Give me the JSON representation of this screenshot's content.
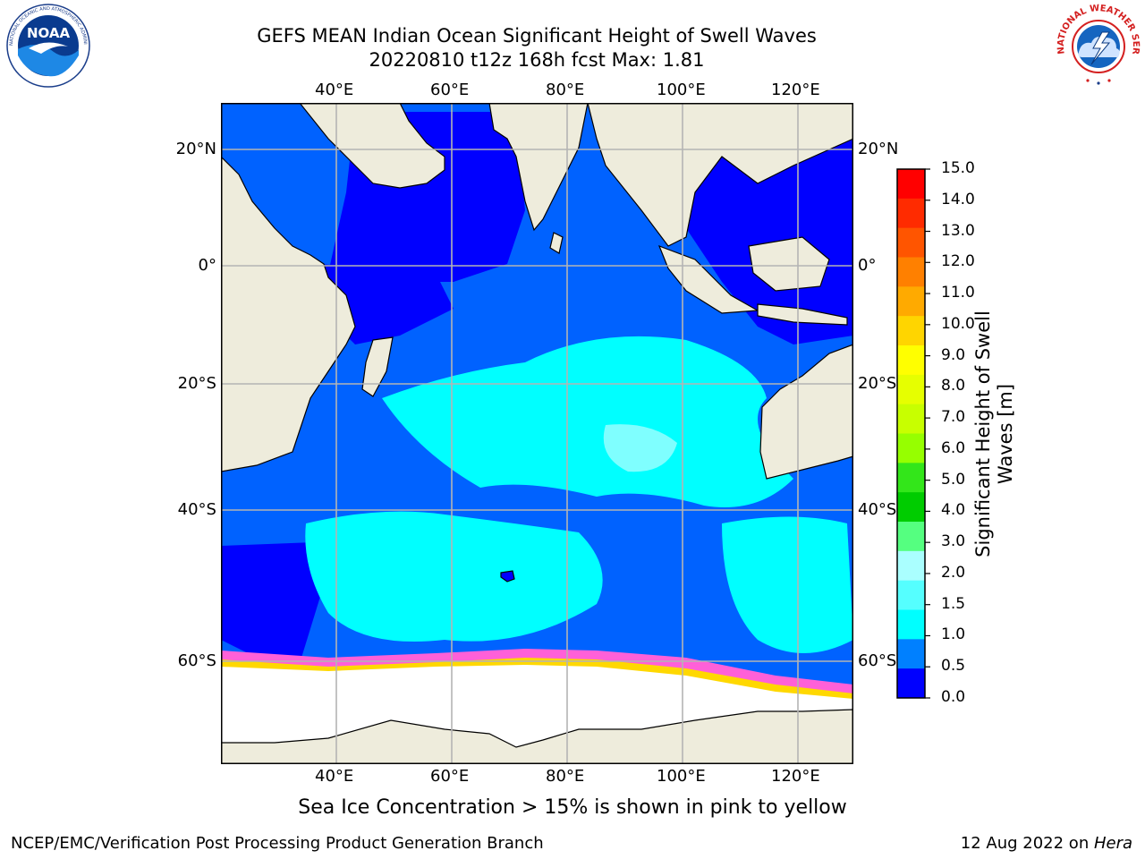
{
  "header": {
    "title_line1": "GEFS MEAN Indian Ocean Significant Height of Swell Waves",
    "title_line2": "20220810 t12z 168h fcst   Max: 1.81"
  },
  "map": {
    "lon_labels": [
      "40°E",
      "60°E",
      "80°E",
      "100°E",
      "120°E"
    ],
    "lat_labels": [
      "20°N",
      "0°",
      "20°S",
      "40°S",
      "60°S"
    ],
    "colors": {
      "land": "#eeecdc",
      "ocean_deep": "#0000ff",
      "ocean_mid": "#0062ff",
      "ocean_light": "#00ffff",
      "ice": "#ffffff",
      "ice_edge_pink": "#ff60d8",
      "ice_edge_yellow": "#ffd800",
      "grid": "#b4b4b4"
    }
  },
  "colorbar": {
    "label_line1": "Significant Height of Swell",
    "label_line2": "Waves [m]",
    "ticks": [
      "15.0",
      "14.0",
      "13.0",
      "12.0",
      "11.0",
      "10.0",
      "9.0",
      "8.0",
      "7.0",
      "6.0",
      "5.0",
      "4.0",
      "3.0",
      "2.0",
      "1.5",
      "1.0",
      "0.5",
      "0.0"
    ],
    "segment_colors": [
      "#ff0000",
      "#ff2b00",
      "#ff5500",
      "#ff8000",
      "#ffaa00",
      "#ffd500",
      "#ffff00",
      "#e6ff00",
      "#c8ff00",
      "#96ff00",
      "#33e61a",
      "#00cc00",
      "#55ff80",
      "#aaffff",
      "#55ffff",
      "#00ffff",
      "#0080ff",
      "#0000ff"
    ]
  },
  "logos": {
    "left_icon": "noaa-logo",
    "left_text": "NOAA",
    "left_ring_text": "NATIONAL OCEANIC AND ATMOSPHERIC ADMINISTRATION · U.S. DEPARTMENT OF COMMERCE",
    "right_icon": "nws-logo",
    "right_ring_text": "NATIONAL WEATHER SERVICE"
  },
  "footer": {
    "note": "Sea Ice Concentration > 15% is shown in pink to yellow",
    "left": "NCEP/EMC/Verification Post Processing Product Generation Branch",
    "right_prefix": "12 Aug 2022 on ",
    "right_host": "Hera"
  }
}
